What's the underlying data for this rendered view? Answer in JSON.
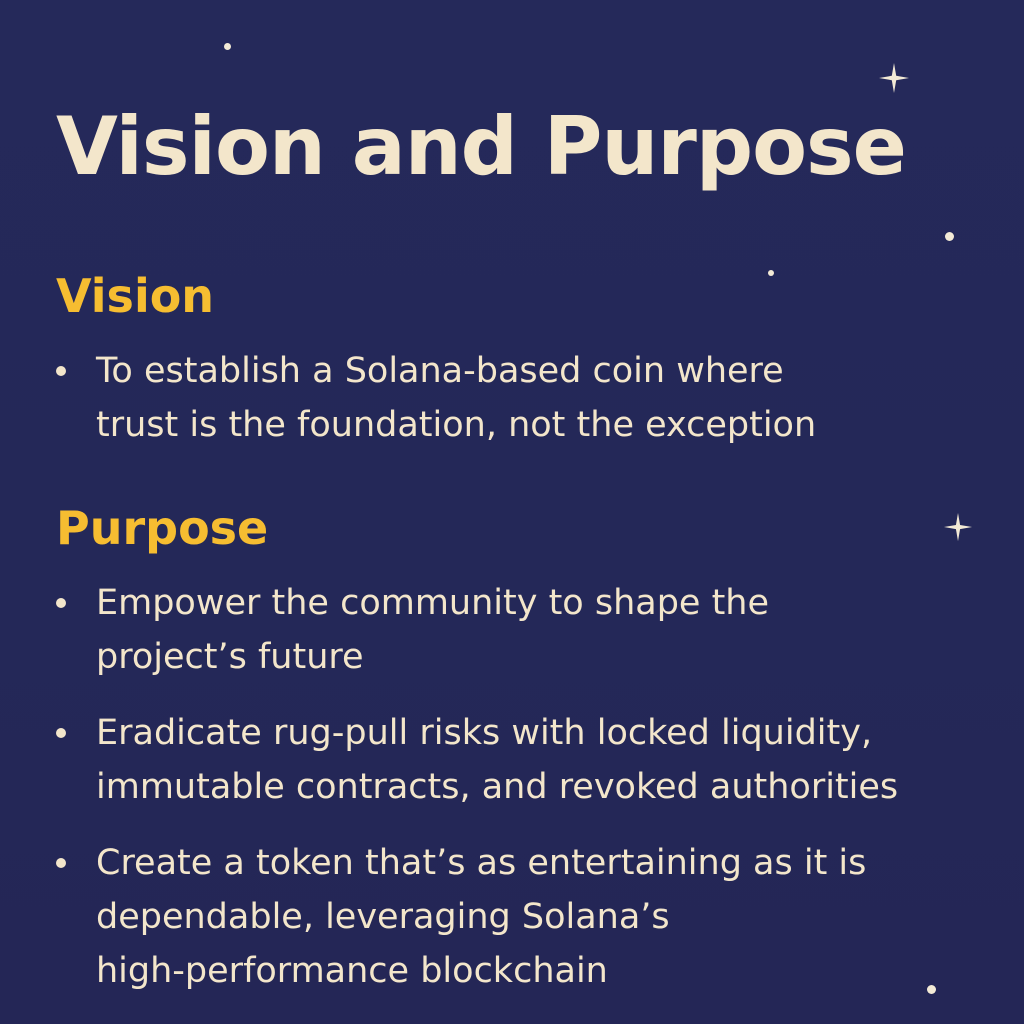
{
  "title": "Vision and Purpose",
  "vision": {
    "heading": "Vision",
    "items": [
      [
        "To establish a Solana-based coin where",
        "trust is the foundation, not the exception"
      ]
    ]
  },
  "purpose": {
    "heading": "Purpose",
    "items": [
      [
        "Empower the community to shape the",
        "project’s future"
      ],
      [
        "Eradicate rug-pull risks with locked liquidity,",
        "immutable contracts, and revoked authorities"
      ],
      [
        "Create a token that’s as entertaining as it is",
        "dependable, leveraging Solana’s",
        "high-performance blockchain"
      ]
    ]
  },
  "colors": {
    "background": "#24285a",
    "title": "#f3e6cb",
    "heading": "#f6bd31",
    "body_text": "#f3e6cb",
    "star": "#f3ead6"
  },
  "decorations": {
    "icon": "sparkle-icon"
  }
}
